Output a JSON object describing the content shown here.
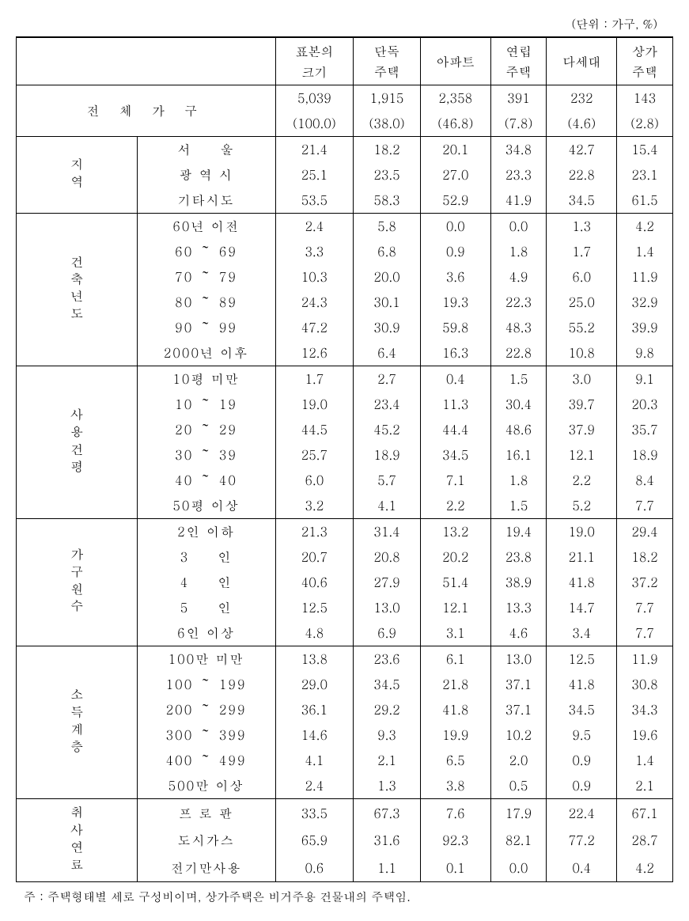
{
  "unit": "(단위 : 가구, %)",
  "headers": {
    "blank": "",
    "c1": "표본의 크기",
    "c2": "단독 주택",
    "c3": "아파트",
    "c4": "연립 주택",
    "c5": "다세대",
    "c6": "상가 주택"
  },
  "total": {
    "label": "전 체 가 구",
    "n": [
      "5,039",
      "1,915",
      "2,358",
      "391",
      "232",
      "143"
    ],
    "p": [
      "(100.0)",
      "(38.0)",
      "(46.8)",
      "(7.8)",
      "(4.6)",
      "(2.8)"
    ]
  },
  "groups": [
    {
      "name": "지역",
      "rows": [
        {
          "label": "서　　울",
          "v": [
            "21.4",
            "18.2",
            "20.1",
            "34.8",
            "42.7",
            "15.4"
          ]
        },
        {
          "label": "광 역 시",
          "v": [
            "25.1",
            "23.5",
            "27.0",
            "23.3",
            "22.8",
            "23.1"
          ]
        },
        {
          "label": "기타시도",
          "v": [
            "53.5",
            "58.3",
            "52.9",
            "41.9",
            "34.5",
            "61.5"
          ]
        }
      ]
    },
    {
      "name": "건축년도",
      "rows": [
        {
          "label": "60년 이전",
          "v": [
            "2.4",
            "5.8",
            "0.0",
            "0.0",
            "1.3",
            "4.2"
          ]
        },
        {
          "label": "60 ～ 69",
          "v": [
            "3.3",
            "6.8",
            "0.9",
            "1.8",
            "1.7",
            "1.4"
          ]
        },
        {
          "label": "70 ～ 79",
          "v": [
            "10.3",
            "20.0",
            "3.6",
            "4.9",
            "6.0",
            "11.9"
          ]
        },
        {
          "label": "80 ～ 89",
          "v": [
            "24.3",
            "30.1",
            "19.3",
            "22.3",
            "25.0",
            "32.9"
          ]
        },
        {
          "label": "90 ～ 99",
          "v": [
            "47.2",
            "30.9",
            "59.8",
            "48.3",
            "55.2",
            "39.9"
          ]
        },
        {
          "label": "2000년 이후",
          "v": [
            "12.6",
            "6.4",
            "16.3",
            "22.8",
            "10.8",
            "9.8"
          ]
        }
      ]
    },
    {
      "name": "사용건평",
      "rows": [
        {
          "label": "10평 미만",
          "v": [
            "1.7",
            "2.7",
            "0.4",
            "1.5",
            "3.0",
            "9.1"
          ]
        },
        {
          "label": "10 ～ 19",
          "v": [
            "19.0",
            "23.4",
            "11.3",
            "30.4",
            "39.7",
            "20.3"
          ]
        },
        {
          "label": "20 ～ 29",
          "v": [
            "44.5",
            "45.2",
            "44.4",
            "48.6",
            "37.9",
            "35.7"
          ]
        },
        {
          "label": "30 ～ 39",
          "v": [
            "25.7",
            "18.9",
            "34.5",
            "16.1",
            "12.1",
            "18.9"
          ]
        },
        {
          "label": "40 ～ 40",
          "v": [
            "6.0",
            "5.7",
            "7.1",
            "1.8",
            "2.2",
            "8.4"
          ]
        },
        {
          "label": "50평 이상",
          "v": [
            "3.2",
            "4.1",
            "2.2",
            "1.5",
            "5.2",
            "7.7"
          ]
        }
      ]
    },
    {
      "name": "가구원수",
      "rows": [
        {
          "label": "2인 이하",
          "v": [
            "21.3",
            "31.4",
            "13.2",
            "19.4",
            "19.0",
            "29.4"
          ]
        },
        {
          "label": "3　　인",
          "v": [
            "20.7",
            "20.8",
            "20.2",
            "23.8",
            "21.1",
            "18.2"
          ]
        },
        {
          "label": "4　　인",
          "v": [
            "40.6",
            "27.9",
            "51.4",
            "38.9",
            "41.8",
            "37.2"
          ]
        },
        {
          "label": "5　　인",
          "v": [
            "12.5",
            "13.0",
            "12.1",
            "13.3",
            "14.7",
            "7.7"
          ]
        },
        {
          "label": "6인 이상",
          "v": [
            "4.8",
            "6.9",
            "3.1",
            "4.6",
            "3.4",
            "7.7"
          ]
        }
      ]
    },
    {
      "name": "소득계층",
      "rows": [
        {
          "label": "100만 미만",
          "v": [
            "13.8",
            "23.6",
            "6.1",
            "13.0",
            "12.5",
            "11.9"
          ]
        },
        {
          "label": "100 ～ 199",
          "v": [
            "29.0",
            "34.5",
            "21.8",
            "37.1",
            "41.8",
            "30.8"
          ]
        },
        {
          "label": "200 ～ 299",
          "v": [
            "36.1",
            "29.2",
            "41.8",
            "37.1",
            "34.5",
            "34.3"
          ]
        },
        {
          "label": "300 ～ 399",
          "v": [
            "14.6",
            "9.3",
            "19.9",
            "10.2",
            "9.5",
            "19.6"
          ]
        },
        {
          "label": "400 ～ 499",
          "v": [
            "4.1",
            "2.1",
            "6.5",
            "2.0",
            "0.9",
            "1.4"
          ]
        },
        {
          "label": "500만 이상",
          "v": [
            "2.4",
            "1.3",
            "3.8",
            "0.5",
            "0.9",
            "2.1"
          ]
        }
      ]
    },
    {
      "name": "취사연료",
      "rows": [
        {
          "label": "프 로 판",
          "v": [
            "33.5",
            "67.3",
            "7.6",
            "17.9",
            "22.4",
            "67.1"
          ]
        },
        {
          "label": "도시가스",
          "v": [
            "65.9",
            "31.6",
            "92.3",
            "82.1",
            "77.2",
            "28.7"
          ]
        },
        {
          "label": "전기만사용",
          "v": [
            "0.6",
            "1.1",
            "0.1",
            "0.0",
            "0.4",
            "4.2"
          ]
        }
      ]
    }
  ],
  "footnote": "주 : 주택형태별 세로 구성비이며, 상가주택은 비거주용 건물내의 주택임."
}
